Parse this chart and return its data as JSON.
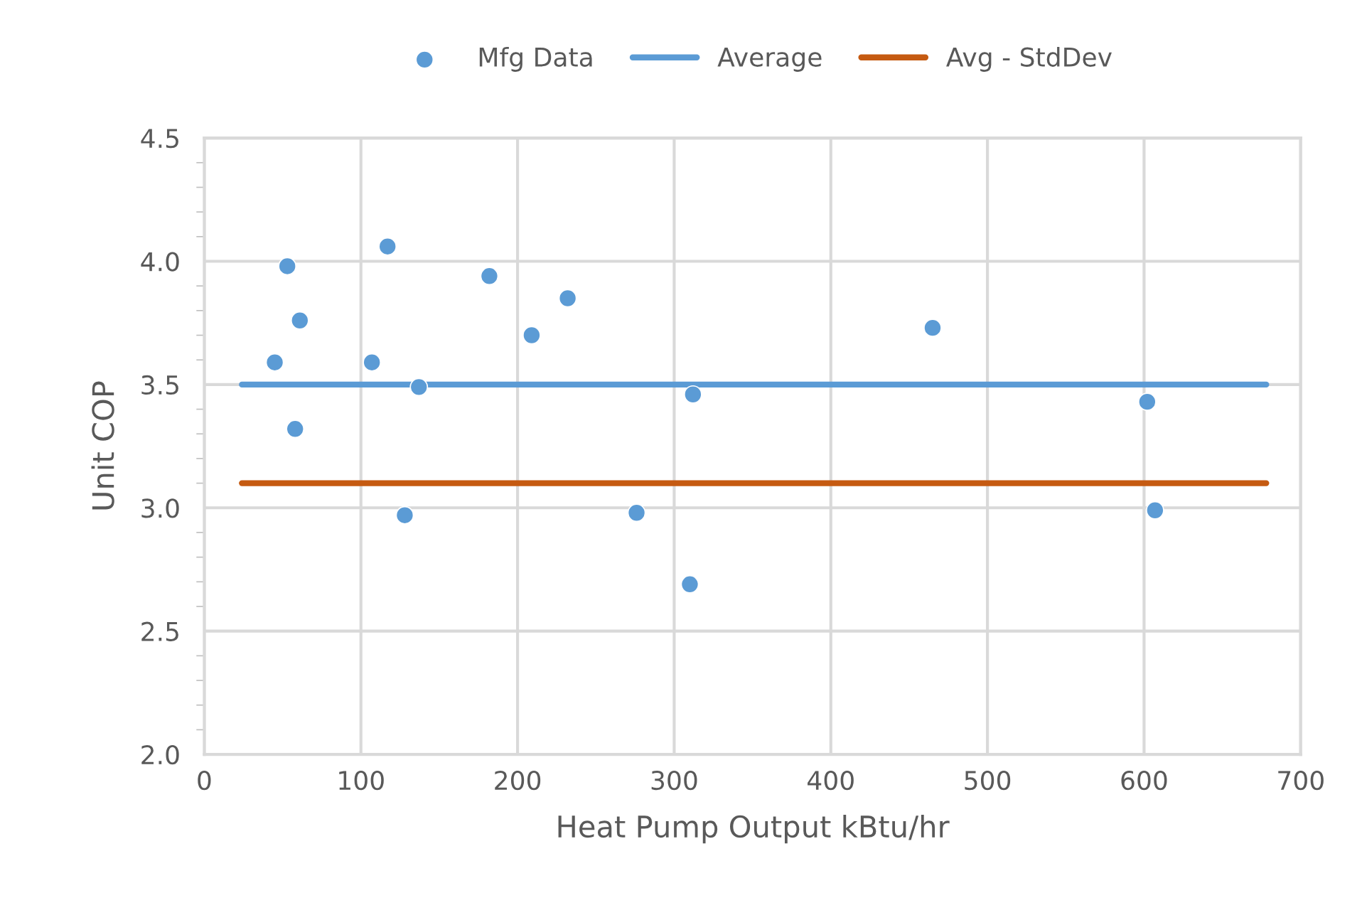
{
  "chart_data": {
    "type": "scatter",
    "xlabel": "Heat Pump Output kBtu/hr",
    "ylabel": "Unit COP",
    "xlim": [
      0,
      700
    ],
    "xticks": [
      0,
      100,
      200,
      300,
      400,
      500,
      600,
      700
    ],
    "ylim": [
      2.0,
      4.5
    ],
    "yticks": [
      {
        "value": 2.0,
        "label": "2.0"
      },
      {
        "value": 2.5,
        "label": "2.5"
      },
      {
        "value": 3.0,
        "label": "3.0"
      },
      {
        "value": 3.5,
        "label": "3.5"
      },
      {
        "value": 4.0,
        "label": "4.0"
      },
      {
        "value": 4.5,
        "label": "4.5"
      }
    ],
    "grid": true,
    "legend": "top",
    "series": [
      {
        "name": "Mfg Data",
        "marker": "circle",
        "color": "#5b9bd5",
        "x": [
          45,
          53,
          58,
          61,
          107,
          117,
          128,
          137,
          182,
          209,
          232,
          276,
          310,
          312,
          465,
          602,
          607
        ],
        "values": [
          3.59,
          3.98,
          3.32,
          3.76,
          3.59,
          4.06,
          2.97,
          3.49,
          3.94,
          3.7,
          3.85,
          2.98,
          2.69,
          3.46,
          3.73,
          3.43,
          2.99
        ]
      },
      {
        "name": "Average",
        "type": "line",
        "color": "#5b9bd5",
        "x": [
          24,
          678
        ],
        "values": [
          3.5,
          3.5
        ]
      },
      {
        "name": "Avg - StdDev",
        "type": "line",
        "color": "#c55a11",
        "x": [
          24,
          678
        ],
        "values": [
          3.1,
          3.1
        ]
      }
    ]
  }
}
